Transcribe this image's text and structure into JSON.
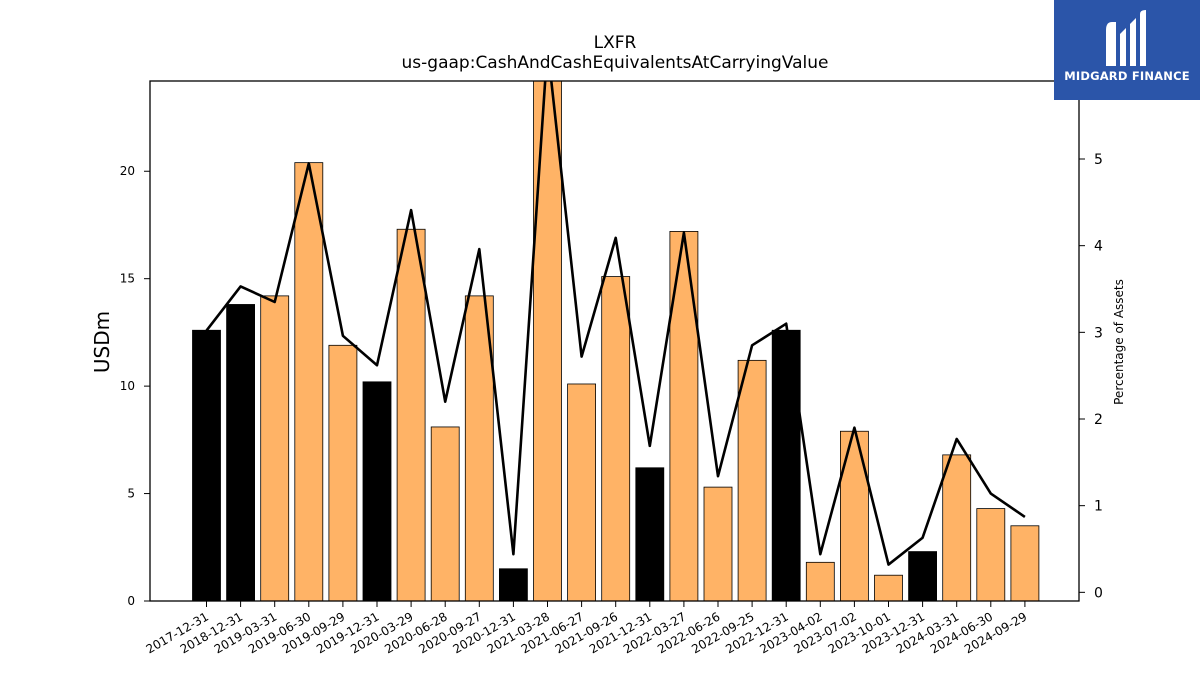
{
  "chart_data": {
    "type": "bar",
    "title": "LXFR",
    "subtitle": "us-gaap:CashAndCashEquivalentsAtCarryingValue",
    "ylabel": "USDm",
    "y2label": "Percentage of Assets",
    "ylim": [
      0,
      24.2
    ],
    "y2lim": [
      -0.1,
      5.9
    ],
    "yticks": [
      0,
      5,
      10,
      15,
      20
    ],
    "y2ticks": [
      0,
      1,
      2,
      3,
      4,
      5
    ],
    "categories": [
      "2017-12-31",
      "2018-12-31",
      "2019-03-31",
      "2019-06-30",
      "2019-09-29",
      "2019-12-31",
      "2020-03-29",
      "2020-06-28",
      "2020-09-27",
      "2020-12-31",
      "2021-03-28",
      "2021-06-27",
      "2021-09-26",
      "2021-12-31",
      "2022-03-27",
      "2022-06-26",
      "2022-09-25",
      "2022-12-31",
      "2023-04-02",
      "2023-07-02",
      "2023-10-01",
      "2023-12-31",
      "2024-03-31",
      "2024-06-30",
      "2024-09-29"
    ],
    "series": [
      {
        "type": "bar",
        "values": [
          12.6,
          13.8,
          14.2,
          20.4,
          11.9,
          10.2,
          17.3,
          8.1,
          14.2,
          1.5,
          24.5,
          10.1,
          15.1,
          6.2,
          17.2,
          5.3,
          11.2,
          12.6,
          1.8,
          7.9,
          1.2,
          2.3,
          6.8,
          4.3,
          3.5
        ],
        "colors": [
          "#000000",
          "#000000",
          "#ffb366",
          "#ffb366",
          "#ffb366",
          "#000000",
          "#ffb366",
          "#ffb366",
          "#ffb366",
          "#000000",
          "#ffb366",
          "#ffb366",
          "#ffb366",
          "#000000",
          "#ffb366",
          "#ffb366",
          "#ffb366",
          "#000000",
          "#ffb366",
          "#ffb366",
          "#ffb366",
          "#000000",
          "#ffb366",
          "#ffb366",
          "#ffb366"
        ]
      },
      {
        "type": "line",
        "axis": "right",
        "color": "#000000",
        "values": [
          3.02,
          3.53,
          3.35,
          4.95,
          2.96,
          2.62,
          4.41,
          2.2,
          3.96,
          0.44,
          6.3,
          2.72,
          4.09,
          1.69,
          4.15,
          1.34,
          2.85,
          3.1,
          0.44,
          1.9,
          0.32,
          0.63,
          1.77,
          1.14,
          0.87
        ]
      }
    ]
  },
  "logo": {
    "text": "MIDGARD FINANCE"
  }
}
